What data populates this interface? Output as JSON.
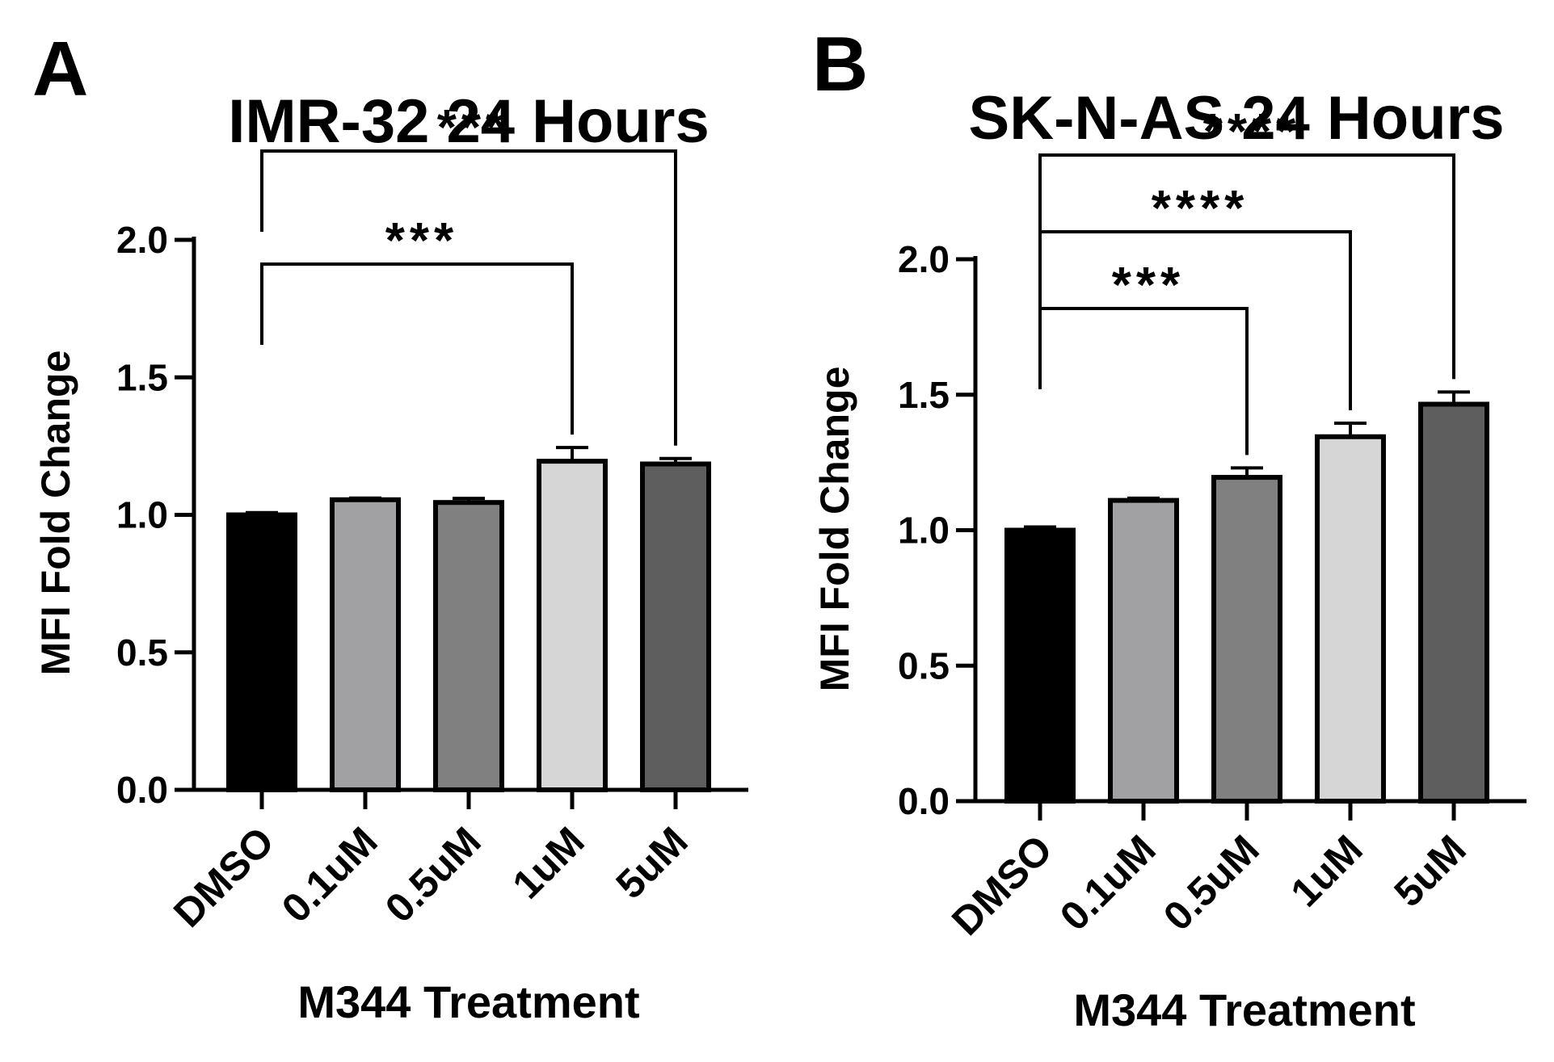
{
  "chart_data": [
    {
      "type": "bar",
      "panel_label": "A",
      "title": "IMR-32 24 Hours",
      "xlabel": "M344 Treatment",
      "ylabel": "MFI Fold Change",
      "ylim": [
        0,
        2.0
      ],
      "yticks": [
        "0.0",
        "0.5",
        "1.0",
        "1.5",
        "2.0"
      ],
      "grid": false,
      "categories": [
        "DMSO",
        "0.1uM",
        "0.5uM",
        "1uM",
        "5uM"
      ],
      "values": [
        1.0,
        1.055,
        1.045,
        1.195,
        1.185
      ],
      "errors": [
        0.008,
        0.006,
        0.015,
        0.05,
        0.02
      ],
      "colors": [
        "#000000",
        "#a1a1a4",
        "#808080",
        "#d6d6d6",
        "#5e5e5e"
      ],
      "significance": [
        {
          "from": 0,
          "to": 3,
          "label": "***"
        },
        {
          "from": 0,
          "to": 4,
          "label": "***"
        }
      ]
    },
    {
      "type": "bar",
      "panel_label": "B",
      "title": "SK-N-AS 24 Hours",
      "xlabel": "M344  Treatment",
      "ylabel": "MFI Fold Change",
      "ylim": [
        0,
        2.0
      ],
      "yticks": [
        "0.0",
        "0.5",
        "1.0",
        "1.5",
        "2.0"
      ],
      "grid": false,
      "categories": [
        "DMSO",
        "0.1uM",
        "0.5uM",
        "1uM",
        "5uM"
      ],
      "values": [
        1.0,
        1.11,
        1.195,
        1.345,
        1.465
      ],
      "errors": [
        0.012,
        0.008,
        0.035,
        0.05,
        0.045
      ],
      "colors": [
        "#000000",
        "#a1a1a4",
        "#808080",
        "#d6d6d6",
        "#5e5e5e"
      ],
      "significance": [
        {
          "from": 0,
          "to": 2,
          "label": "***"
        },
        {
          "from": 0,
          "to": 3,
          "label": "****"
        },
        {
          "from": 0,
          "to": 4,
          "label": "****"
        }
      ]
    }
  ]
}
